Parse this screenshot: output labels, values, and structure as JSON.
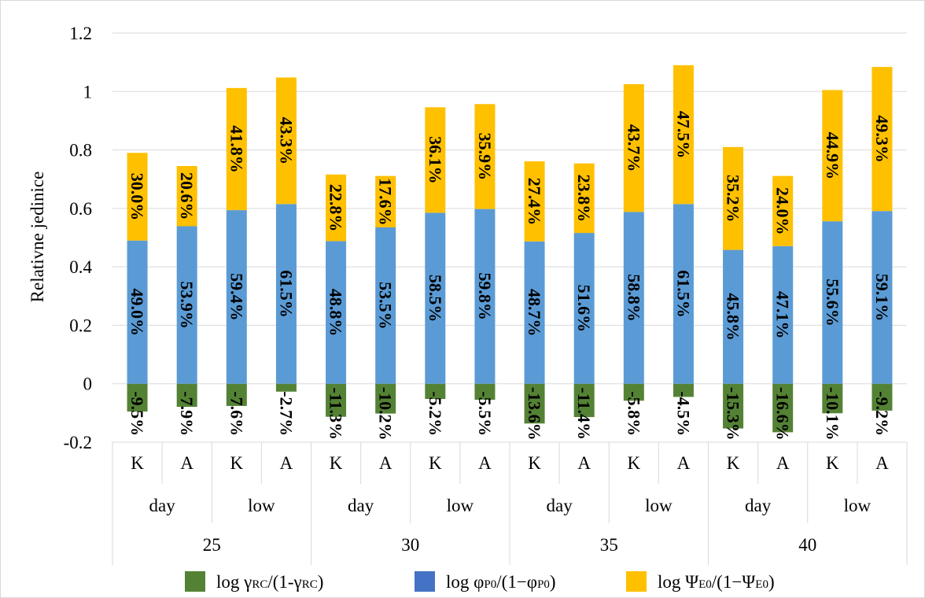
{
  "chart_data": {
    "type": "bar",
    "stacked": true,
    "ylabel": "Relativne jedinice",
    "xlabel": "",
    "title": "",
    "ylim": [
      -0.2,
      1.2
    ],
    "yticks": [
      "-0.2",
      "0",
      "0.2",
      "0.4",
      "0.6",
      "0.8",
      "1",
      "1.2"
    ],
    "grid": true,
    "legend_position": "bottom",
    "categories": [
      "K",
      "A",
      "K",
      "A",
      "K",
      "A",
      "K",
      "A",
      "K",
      "A",
      "K",
      "A",
      "K",
      "A",
      "K",
      "A"
    ],
    "level2": [
      "day",
      "low",
      "day",
      "low",
      "day",
      "low",
      "day",
      "low"
    ],
    "level3": [
      "25",
      "30",
      "35",
      "40"
    ],
    "series": [
      {
        "key": "gamma",
        "name": "log γRC/(1-γRC)",
        "color": "#548235",
        "values": [
          -0.095,
          -0.079,
          -0.076,
          -0.027,
          -0.113,
          -0.102,
          -0.052,
          -0.055,
          -0.136,
          -0.114,
          -0.058,
          -0.045,
          -0.153,
          -0.166,
          -0.101,
          -0.092
        ],
        "labels": [
          "-9.5%",
          "-7.9%",
          "-7.6%",
          "-2.7%",
          "-11.3%",
          "-10.2%",
          "-5.2%",
          "-5.5%",
          "-13.6%",
          "-11.4%",
          "-5.8%",
          "-4.5%",
          "-15.3%",
          "-16.6%",
          "-10.1%",
          "-9.2%"
        ]
      },
      {
        "key": "phi",
        "name": "log φP0/(1−φP0)",
        "color": "#5B9BD5",
        "values": [
          0.49,
          0.539,
          0.594,
          0.615,
          0.488,
          0.535,
          0.585,
          0.598,
          0.487,
          0.516,
          0.588,
          0.615,
          0.458,
          0.471,
          0.556,
          0.591
        ],
        "labels": [
          "49.0%",
          "53.9%",
          "59.4%",
          "61.5%",
          "48.8%",
          "53.5%",
          "58.5%",
          "59.8%",
          "48.7%",
          "51.6%",
          "58.8%",
          "61.5%",
          "45.8%",
          "47.1%",
          "55.6%",
          "59.1%"
        ]
      },
      {
        "key": "psi",
        "name": "log ΨE0/(1−ΨE0)",
        "color": "#FFC000",
        "values": [
          0.3,
          0.206,
          0.418,
          0.433,
          0.228,
          0.176,
          0.361,
          0.359,
          0.274,
          0.238,
          0.437,
          0.475,
          0.352,
          0.24,
          0.449,
          0.493
        ],
        "labels": [
          "30.0%",
          "20.6%",
          "41.8%",
          "43.3%",
          "22.8%",
          "17.6%",
          "36.1%",
          "35.9%",
          "27.4%",
          "23.8%",
          "43.7%",
          "47.5%",
          "35.2%",
          "24.0%",
          "44.9%",
          "49.3%"
        ]
      }
    ],
    "legend": [
      {
        "base": "log γ",
        "sub": "RC",
        "mid": "/(1-γ",
        "sub2": "RC",
        "end": ")",
        "color": "#548235"
      },
      {
        "base": "log φ",
        "sub": "P0",
        "mid": "/(1−φ",
        "sub2": "P0",
        "end": ")",
        "color": "#4472C4"
      },
      {
        "base": "log Ψ",
        "sub": "E0",
        "mid": "/(1−Ψ",
        "sub2": "E0",
        "end": ")",
        "color": "#FFC000"
      }
    ]
  }
}
